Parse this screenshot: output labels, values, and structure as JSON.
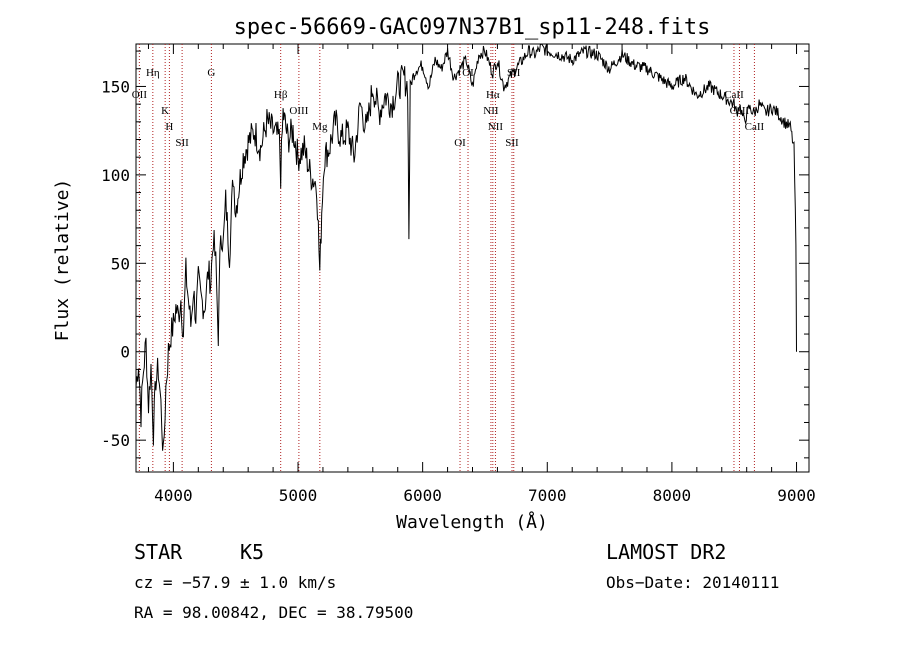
{
  "chart_data": {
    "type": "line",
    "title": "spec-56669-GAC097N37B1_sp11-248.fits",
    "xlabel": "Wavelength (Å)",
    "ylabel": "Flux (relative)",
    "xlim": [
      3700,
      9100
    ],
    "ylim": [
      -68,
      174
    ],
    "x_ticks": [
      4000,
      5000,
      6000,
      7000,
      8000,
      9000
    ],
    "y_ticks": [
      -50,
      0,
      50,
      100,
      150
    ],
    "x_tick_labels": [
      "4000",
      "5000",
      "6000",
      "7000",
      "8000",
      "9000"
    ],
    "y_tick_labels": [
      "-50",
      "0",
      "50",
      "100",
      "150"
    ],
    "series": [
      {
        "name": "spectrum",
        "x": [
          3700,
          3720,
          3740,
          3760,
          3780,
          3800,
          3820,
          3840,
          3860,
          3880,
          3900,
          3920,
          3940,
          3960,
          3980,
          4000,
          4020,
          4040,
          4060,
          4080,
          4100,
          4120,
          4140,
          4160,
          4180,
          4200,
          4220,
          4250,
          4280,
          4300,
          4320,
          4340,
          4360,
          4380,
          4400,
          4420,
          4450,
          4480,
          4500,
          4530,
          4560,
          4600,
          4650,
          4700,
          4750,
          4800,
          4850,
          4861,
          4880,
          4920,
          4960,
          5000,
          5050,
          5100,
          5150,
          5175,
          5190,
          5210,
          5250,
          5300,
          5350,
          5400,
          5450,
          5500,
          5550,
          5600,
          5650,
          5700,
          5750,
          5800,
          5850,
          5880,
          5890,
          5900,
          5920,
          5950,
          6000,
          6050,
          6100,
          6150,
          6200,
          6250,
          6300,
          6350,
          6400,
          6450,
          6500,
          6550,
          6563,
          6600,
          6650,
          6700,
          6750,
          6800,
          6850,
          6900,
          6950,
          7000,
          7100,
          7200,
          7300,
          7400,
          7500,
          7600,
          7700,
          7800,
          7900,
          8000,
          8100,
          8200,
          8300,
          8400,
          8498,
          8520,
          8542,
          8580,
          8620,
          8662,
          8700,
          8750,
          8800,
          8850,
          8900,
          8950,
          8980,
          8995,
          9000
        ],
        "values": [
          -20,
          -5,
          -35,
          -10,
          5,
          -30,
          -8,
          -45,
          -15,
          -10,
          -30,
          -60,
          -20,
          0,
          10,
          15,
          25,
          20,
          30,
          10,
          45,
          30,
          15,
          35,
          20,
          40,
          30,
          25,
          45,
          40,
          65,
          50,
          10,
          70,
          60,
          85,
          55,
          100,
          80,
          95,
          110,
          118,
          125,
          115,
          130,
          125,
          120,
          100,
          135,
          120,
          125,
          110,
          115,
          100,
          95,
          45,
          80,
          110,
          115,
          130,
          120,
          125,
          110,
          140,
          125,
          150,
          135,
          145,
          140,
          150,
          155,
          150,
          66,
          150,
          155,
          160,
          162,
          150,
          165,
          160,
          170,
          155,
          160,
          165,
          150,
          168,
          170,
          160,
          158,
          165,
          150,
          155,
          160,
          165,
          170,
          168,
          172,
          170,
          168,
          165,
          170,
          168,
          160,
          168,
          162,
          160,
          155,
          150,
          155,
          145,
          150,
          145,
          140,
          135,
          140,
          130,
          138,
          135,
          140,
          135,
          138,
          135,
          130,
          127,
          115,
          60,
          0
        ]
      }
    ],
    "lines": [
      {
        "label": "Hη",
        "x": 3835
      },
      {
        "label": "OII",
        "x": 3727
      },
      {
        "label": "K",
        "x": 3934
      },
      {
        "label": "H",
        "x": 3968
      },
      {
        "label": "SII",
        "x": 4070
      },
      {
        "label": "G",
        "x": 4305
      },
      {
        "label": "Hβ",
        "x": 4861
      },
      {
        "label": "OIII",
        "x": 5007
      },
      {
        "label": "Mg",
        "x": 5175
      },
      {
        "label": "OI",
        "x": 6300
      },
      {
        "label": "OI",
        "x": 6364
      },
      {
        "label": "Hα",
        "x": 6563
      },
      {
        "label": "NII",
        "x": 6548
      },
      {
        "label": "NII",
        "x": 6584
      },
      {
        "label": "SII",
        "x": 6717
      },
      {
        "label": "SII",
        "x": 6731
      },
      {
        "label": "CaII",
        "x": 8498
      },
      {
        "label": "CaII",
        "x": 8542
      },
      {
        "label": "CaII",
        "x": 8662
      }
    ]
  },
  "info": {
    "class": "STAR",
    "subclass": "K5",
    "survey": "LAMOST DR2",
    "cz": "cz = −57.9 ± 1.0 km/s",
    "obs_date": "Obs−Date: 20140111",
    "radec": "RA =  98.00842, DEC =  38.79500"
  }
}
